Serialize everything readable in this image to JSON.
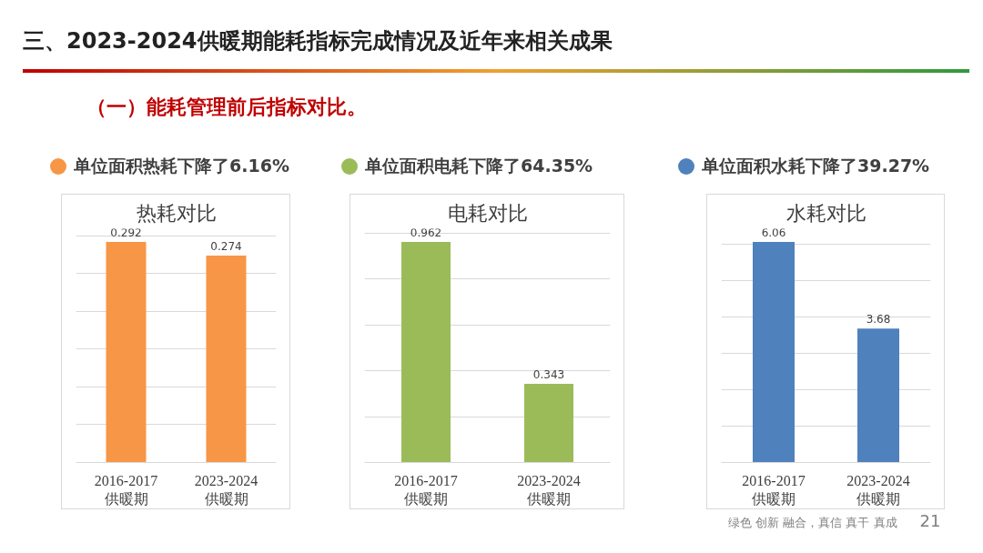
{
  "chart_data": [
    {
      "type": "other",
      "title": "三、2023-2024供暖期能耗指标完成情况及近年来相关成果",
      "subtitle": "（一）能耗管理前后指标对比。",
      "annotations": [
        "绿色 创新 融合，真信 真干 真成",
        "21"
      ]
    },
    {
      "type": "bar",
      "title": "热耗对比",
      "categories": [
        "2016-2017\n供暖期",
        "2023-2024\n供暖期"
      ],
      "values": [
        0.292,
        0.274
      ],
      "color": "#f79646",
      "grid": "y",
      "tick_labels": "x",
      "data_labels": true,
      "annotations": [
        "单位面积热耗下降了6.16%"
      ]
    },
    {
      "type": "bar",
      "title": "电耗对比",
      "categories": [
        "2016-2017\n供暖期",
        "2023-2024\n供暖期"
      ],
      "values": [
        0.962,
        0.343
      ],
      "color": "#9bbb59",
      "grid": "y",
      "tick_labels": "x",
      "data_labels": true,
      "annotations": [
        "单位面积电耗下降了64.35%"
      ]
    },
    {
      "type": "bar",
      "title": "水耗对比",
      "categories": [
        "2016-2017\n供暖期",
        "2023-2024\n供暖期"
      ],
      "values": [
        6.06,
        3.68
      ],
      "color": "#4f81bd",
      "grid": "y",
      "tick_labels": "x",
      "data_labels": true,
      "annotations": [
        "单位面积水耗下降了39.27%"
      ]
    }
  ]
}
